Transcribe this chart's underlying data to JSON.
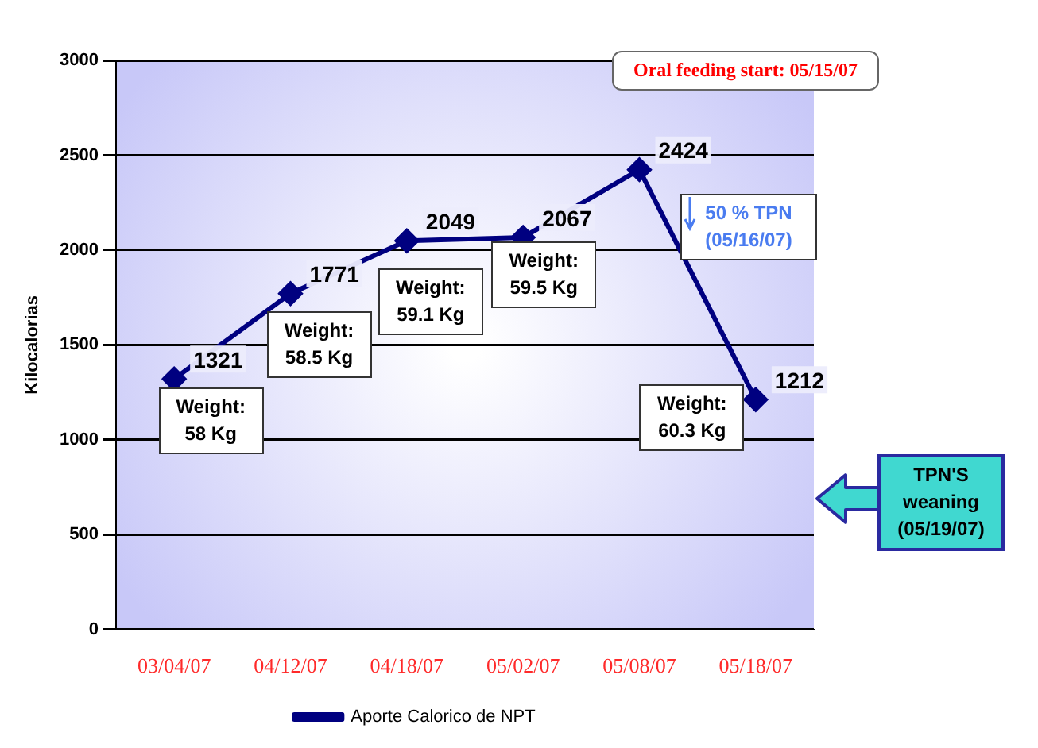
{
  "chart_data": {
    "type": "line",
    "ylabel": "Kilocalorias",
    "categories": [
      "03/04/07",
      "04/12/07",
      "04/18/07",
      "05/02/07",
      "05/08/07",
      "05/18/07"
    ],
    "series": [
      {
        "name": "Aporte Calorico de NPT",
        "color": "#000080",
        "values": [
          1321,
          1771,
          2049,
          2067,
          2424,
          1212
        ]
      }
    ],
    "ylim": [
      0,
      3000
    ],
    "yticks": [
      0,
      500,
      1000,
      1500,
      2000,
      2500,
      3000
    ],
    "grid": "y",
    "legend": "bottom",
    "marker": "diamond",
    "line_style": "solid",
    "data_labels": true,
    "annotations": [
      {
        "text": "Weight: 58 Kg",
        "x": "03/04/07",
        "y": 1321
      },
      {
        "text": "Weight: 58.5 Kg",
        "x": "04/12/07",
        "y": 1771
      },
      {
        "text": "Weight: 59.1 Kg",
        "x": "04/18/07",
        "y": 2049
      },
      {
        "text": "Weight: 59.5 Kg",
        "x": "05/02/07",
        "y": 2067
      },
      {
        "text": "Weight: 60.3 Kg",
        "x": "05/18/07",
        "y": 1212
      },
      "Oral feeding start: 05/15/07",
      "50 % TPN (05/16/07)",
      "TPN'S weaning (05/19/07)"
    ]
  }
}
